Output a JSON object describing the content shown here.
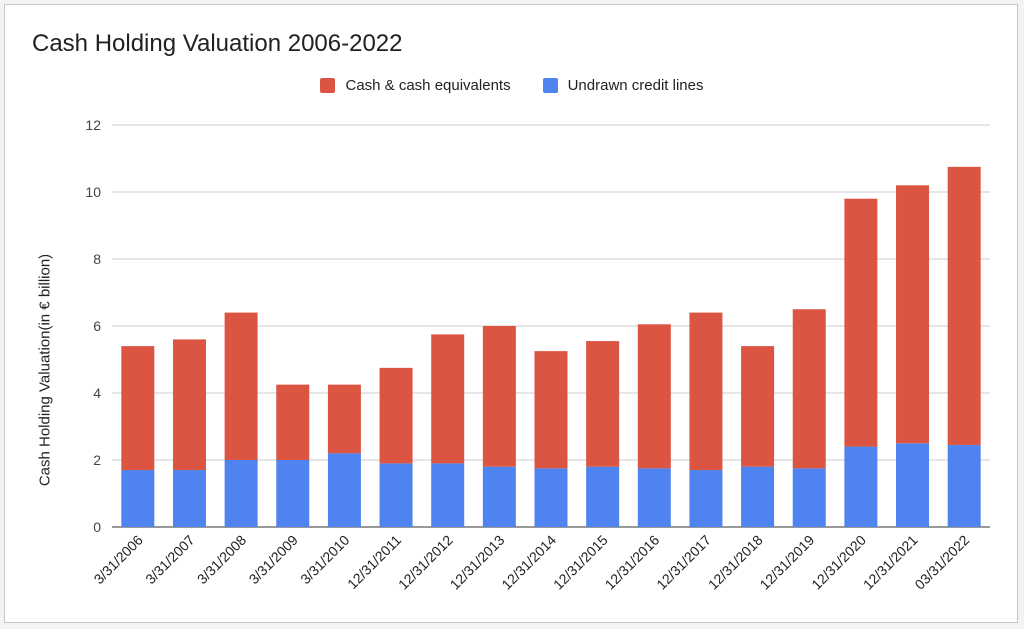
{
  "chart_data": {
    "type": "bar",
    "stacked": true,
    "title": "Cash Holding Valuation 2006-2022",
    "xlabel": "",
    "ylabel": "Cash Holding Valuation(in € billion)",
    "ylim": [
      0,
      12
    ],
    "yticks": [
      0,
      2,
      4,
      6,
      8,
      10,
      12
    ],
    "grid": true,
    "legend_position": "top-center",
    "categories": [
      "3/31/2006",
      "3/31/2007",
      "3/31/2008",
      "3/31/2009",
      "3/31/2010",
      "12/31/2011",
      "12/31/2012",
      "12/31/2013",
      "12/31/2014",
      "12/31/2015",
      "12/31/2016",
      "12/31/2017",
      "12/31/2018",
      "12/31/2019",
      "12/31/2020",
      "12/31/2021",
      "03/31/2022"
    ],
    "series": [
      {
        "name": "Undrawn credit lines",
        "color": "#4f83ef",
        "values": [
          1.7,
          1.7,
          2.0,
          2.0,
          2.2,
          1.9,
          1.9,
          1.8,
          1.75,
          1.8,
          1.75,
          1.7,
          1.8,
          1.75,
          2.4,
          2.5,
          2.45
        ]
      },
      {
        "name": "Cash & cash equivalents",
        "color": "#dc5442",
        "values": [
          3.7,
          3.9,
          4.4,
          2.25,
          2.05,
          2.85,
          3.85,
          4.2,
          3.5,
          3.75,
          4.3,
          4.7,
          3.6,
          4.75,
          7.4,
          7.7,
          8.3
        ]
      }
    ]
  }
}
